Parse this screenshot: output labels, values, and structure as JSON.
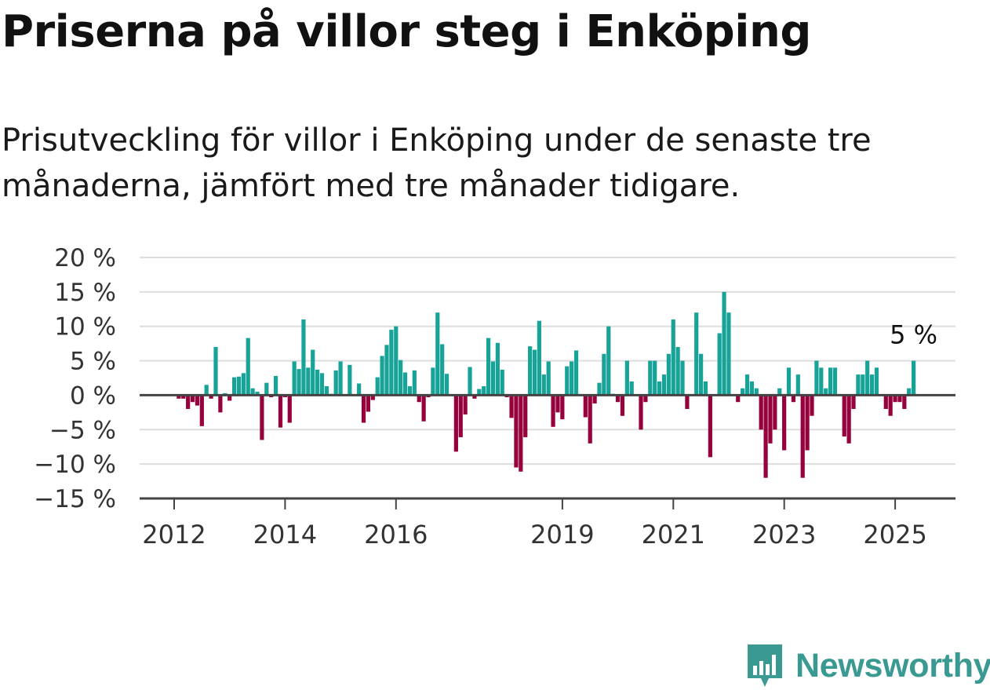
{
  "title": "Priserna på villor steg i Enköping",
  "subtitle": "Prisutveckling för villor i Enköping under de senaste tre månaderna, jämfört med tre månader tidigare.",
  "brand": "Newsworthy",
  "colors": {
    "positive": "#17a398",
    "negative": "#96003c",
    "grid": "#dddddd",
    "axis": "#555555",
    "brand": "#3a9a92"
  },
  "chart_data": {
    "type": "bar",
    "ylim": [
      -15,
      20
    ],
    "yticks": [
      20,
      15,
      10,
      5,
      0,
      -5,
      -10,
      -15
    ],
    "ytick_labels": [
      "20 %",
      "15 %",
      "10 %",
      "5 %",
      "0 %",
      "−5 %",
      "−10 %",
      "−15 %"
    ],
    "xticks": [
      {
        "label": "2012",
        "x": 2012.0
      },
      {
        "label": "2014",
        "x": 2014.0
      },
      {
        "label": "2016",
        "x": 2016.0
      },
      {
        "label": "2019",
        "x": 2019.0
      },
      {
        "label": "2021",
        "x": 2021.0
      },
      {
        "label": "2023",
        "x": 2023.0
      },
      {
        "label": "2025",
        "x": 2025.0
      }
    ],
    "start": 2012.083,
    "step": 0.08333,
    "values": [
      -0.5,
      -0.5,
      -2,
      -1,
      -1.5,
      -4.5,
      1.5,
      -0.5,
      7,
      -2.5,
      0.3,
      -0.8,
      2.6,
      2.7,
      3.2,
      8.3,
      1,
      0.5,
      -6.5,
      1.8,
      -0.3,
      2.8,
      -4.7,
      -0.3,
      -4,
      4.9,
      3.8,
      11,
      4,
      6.6,
      3.7,
      3.2,
      1.3,
      0.2,
      3.6,
      4.9,
      0.1,
      4.4,
      0.1,
      1.7,
      -4,
      -2.4,
      -0.7,
      2.6,
      5.7,
      7.3,
      9.5,
      10,
      5.1,
      3.3,
      1.3,
      3.6,
      -1,
      -3.8,
      -0.3,
      4,
      12,
      7.4,
      3.1,
      -0.1,
      -8.2,
      -6.1,
      -2.8,
      4.1,
      -0.5,
      0.9,
      1.3,
      8.3,
      4.9,
      7.6,
      3.7,
      -0.3,
      -3.3,
      -10.5,
      -11.1,
      -6.1,
      7.1,
      6.6,
      10.8,
      3,
      4.9,
      -4.6,
      -2.5,
      -3.5,
      4.2,
      4.9,
      6.5,
      0.1,
      -3.2,
      -7,
      -1.2,
      1.8,
      6,
      10,
      0.2,
      -1,
      -3,
      5,
      2,
      0.1,
      -5,
      -1,
      5,
      5,
      2,
      3,
      6,
      11,
      7,
      5,
      -2,
      0.1,
      12,
      6,
      2,
      -9,
      0.1,
      9,
      15,
      12,
      0.1,
      -1,
      1,
      3,
      2,
      1,
      -5,
      -12,
      -7,
      -5,
      1,
      -8,
      4,
      -1,
      3,
      -12,
      -8,
      -3,
      5,
      4,
      1,
      4,
      4,
      0.1,
      -6,
      -7,
      -2,
      3,
      3,
      5,
      3,
      4,
      0.1,
      -2,
      -3,
      -1,
      -1,
      -2,
      1,
      5
    ],
    "last_label": "5 %"
  }
}
